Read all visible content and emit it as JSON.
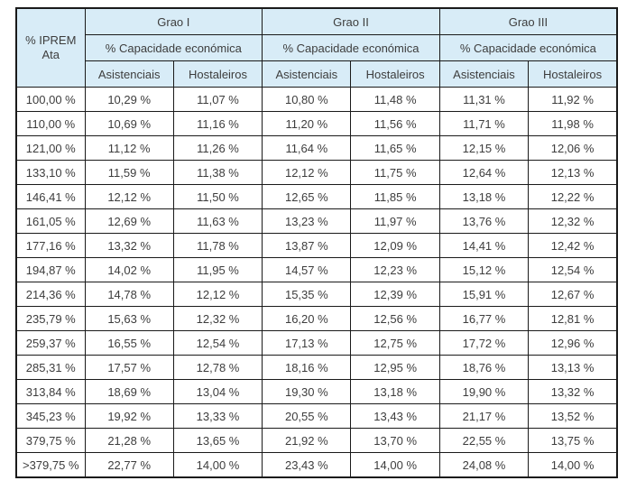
{
  "colors": {
    "header_bg": "#d8ecf7",
    "border": "#1a1a1a",
    "text": "#3d3d3d",
    "page_bg": "#ffffff"
  },
  "table": {
    "corner_header": "% IPREM Ata",
    "groups": [
      {
        "label": "Grao I",
        "subheader": "% Capacidade económica",
        "columns": [
          "Asistenciais",
          "Hostaleiros"
        ]
      },
      {
        "label": "Grao II",
        "subheader": "% Capacidade económica",
        "columns": [
          "Asistenciais",
          "Hostaleiros"
        ]
      },
      {
        "label": "Grao III",
        "subheader": "% Capacidade económica",
        "columns": [
          "Asistenciais",
          "Hostaleiros"
        ]
      }
    ],
    "rows": [
      [
        "100,00 %",
        "10,29 %",
        "11,07 %",
        "10,80 %",
        "11,48 %",
        "11,31 %",
        "11,92 %"
      ],
      [
        "110,00 %",
        "10,69 %",
        "11,16 %",
        "11,20 %",
        "11,56 %",
        "11,71 %",
        "11,98 %"
      ],
      [
        "121,00 %",
        "11,12 %",
        "11,26 %",
        "11,64 %",
        "11,65 %",
        "12,15 %",
        "12,06 %"
      ],
      [
        "133,10 %",
        "11,59 %",
        "11,38 %",
        "12,12 %",
        "11,75 %",
        "12,64 %",
        "12,13 %"
      ],
      [
        "146,41 %",
        "12,12 %",
        "11,50 %",
        "12,65 %",
        "11,85 %",
        "13,18 %",
        "12,22 %"
      ],
      [
        "161,05 %",
        "12,69 %",
        "11,63 %",
        "13,23 %",
        "11,97 %",
        "13,76 %",
        "12,32 %"
      ],
      [
        "177,16 %",
        "13,32 %",
        "11,78 %",
        "13,87 %",
        "12,09 %",
        "14,41 %",
        "12,42 %"
      ],
      [
        "194,87 %",
        "14,02 %",
        "11,95 %",
        "14,57 %",
        "12,23 %",
        "15,12 %",
        "12,54 %"
      ],
      [
        "214,36 %",
        "14,78 %",
        "12,12 %",
        "15,35 %",
        "12,39 %",
        "15,91 %",
        "12,67 %"
      ],
      [
        "235,79 %",
        "15,63 %",
        "12,32 %",
        "16,20 %",
        "12,56 %",
        "16,77 %",
        "12,81 %"
      ],
      [
        "259,37 %",
        "16,55 %",
        "12,54 %",
        "17,13 %",
        "12,75 %",
        "17,72 %",
        "12,96 %"
      ],
      [
        "285,31 %",
        "17,57 %",
        "12,78 %",
        "18,16 %",
        "12,95 %",
        "18,76 %",
        "13,13 %"
      ],
      [
        "313,84 %",
        "18,69 %",
        "13,04 %",
        "19,30 %",
        "13,18 %",
        "19,90 %",
        "13,32 %"
      ],
      [
        "345,23 %",
        "19,92 %",
        "13,33 %",
        "20,55 %",
        "13,43 %",
        "21,17 %",
        "13,52 %"
      ],
      [
        "379,75 %",
        "21,28 %",
        "13,65 %",
        "21,92 %",
        "13,70 %",
        "22,55 %",
        "13,75 %"
      ],
      [
        ">379,75 %",
        "22,77 %",
        "14,00 %",
        "23,43 %",
        "14,00 %",
        "24,08 %",
        "14,00 %"
      ]
    ]
  }
}
